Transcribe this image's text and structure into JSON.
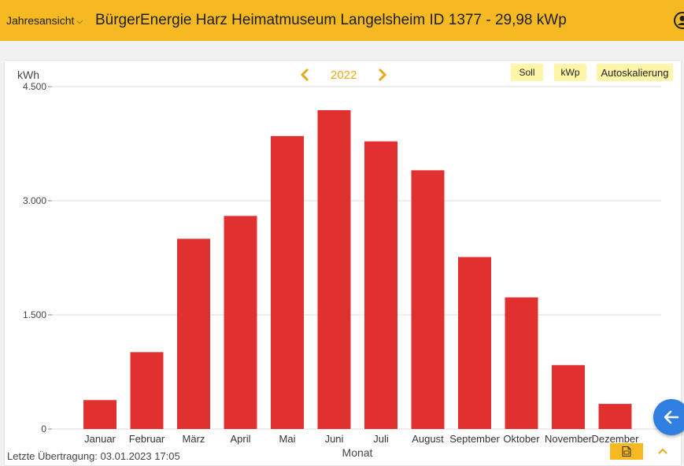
{
  "header": {
    "view_select": "Jahresansicht",
    "title": "BürgerEnergie Harz Heimatmuseum Langelsheim ID 1377 - 29,98 kWp"
  },
  "toolbar": {
    "year": "2022",
    "soll_label": "Soll",
    "kwp_label": "kWp",
    "autoscale_label": "Autoskalierung"
  },
  "footer": {
    "last_transfer": "Letzte Übertragung: 03.01.2023 17:05"
  },
  "colors": {
    "accent": "#f5b922",
    "bar": "#e03030",
    "fab": "#2f7fe0"
  },
  "chart_data": {
    "type": "bar",
    "ylabel": "kWh",
    "xlabel": "Monat",
    "categories": [
      "Januar",
      "Februar",
      "März",
      "April",
      "Mai",
      "Juni",
      "Juli",
      "August",
      "September",
      "Oktober",
      "November",
      "Dezember"
    ],
    "values": [
      380,
      1010,
      2500,
      2800,
      3850,
      4190,
      3780,
      3400,
      2260,
      1730,
      840,
      330
    ],
    "ylim": [
      0,
      4500
    ],
    "yticks": [
      0,
      1500,
      3000,
      4500
    ],
    "ytick_labels": [
      "0",
      "1.500",
      "3.000",
      "4.500"
    ],
    "grid": true
  }
}
